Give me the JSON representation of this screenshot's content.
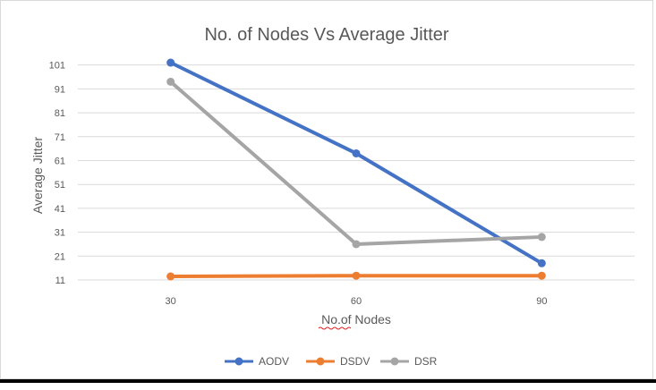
{
  "chart_data": {
    "type": "line",
    "title": "No. of Nodes Vs Average Jitter",
    "xlabel": "No.of Nodes",
    "ylabel": "Average Jitter",
    "categories": [
      "30",
      "60",
      "90"
    ],
    "ylim": [
      11,
      105
    ],
    "yticks": [
      11,
      21,
      31,
      41,
      51,
      61,
      71,
      81,
      91,
      101
    ],
    "grid": true,
    "legend": "bottom",
    "series": [
      {
        "name": "AODV",
        "color": "#4472c4",
        "values": [
          102,
          64,
          18
        ]
      },
      {
        "name": "DSDV",
        "color": "#ed7d31",
        "values": [
          12.5,
          12.8,
          12.8
        ]
      },
      {
        "name": "DSR",
        "color": "#a5a5a5",
        "values": [
          94,
          26,
          29
        ]
      }
    ]
  }
}
